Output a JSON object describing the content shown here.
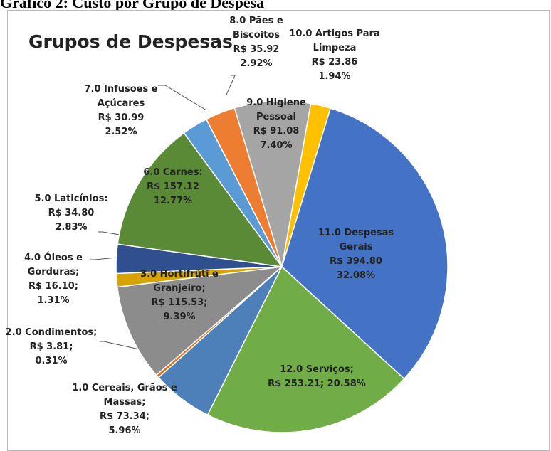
{
  "header": "Gráfico 2: Custo por Grupo de Despesa",
  "chart_data": {
    "type": "pie",
    "title": "Grupos de Despesas",
    "categories": [
      "1.0 Cereais, Grãos e Massas;",
      "2.0 Condimentos;",
      "3.0 Hortifrúti e Granjeiro;",
      "4.0 Óleos e Gorduras;",
      "5.0 Laticínios:",
      "6.0 Carnes:",
      "7.0 Infusões e Açúcares",
      "8.0 Pães e Biscoitos",
      "9.0 Higiene Pessoal",
      "10.0 Artigos Para Limpeza",
      "11.0 Despesas Gerais",
      "12.0 Serviços;"
    ],
    "values": [
      73.34,
      3.81,
      115.53,
      16.1,
      34.8,
      157.12,
      30.99,
      35.92,
      91.08,
      23.86,
      394.8,
      253.21
    ],
    "value_labels": [
      "R$ 73.34;",
      "R$ 3.81;",
      "R$ 115.53;",
      "R$ 16.10;",
      "R$ 34.80",
      "R$ 157.12",
      "R$ 30.99",
      "R$ 35.92",
      "R$ 91.08",
      "R$ 23.86",
      "R$ 394.80",
      "R$ 253.21;"
    ],
    "percents": [
      5.96,
      0.31,
      9.39,
      1.31,
      2.83,
      12.77,
      2.52,
      2.92,
      7.4,
      1.94,
      32.08,
      20.58
    ],
    "percent_labels": [
      "5.96%",
      "0.31%",
      "9.39%",
      "1.31%",
      "2.83%",
      "12.77%",
      "2.52%",
      "2.92%",
      "7.40%",
      "1.94%",
      "32.08%",
      "20.58%"
    ],
    "colors": [
      "#4d7fb8",
      "#e46c0a",
      "#8c8c8c",
      "#d6a300",
      "#2f4f8f",
      "#5a8a35",
      "#5b9bd5",
      "#ed7d31",
      "#a5a5a5",
      "#ffc000",
      "#4472c4",
      "#70ad47"
    ]
  }
}
